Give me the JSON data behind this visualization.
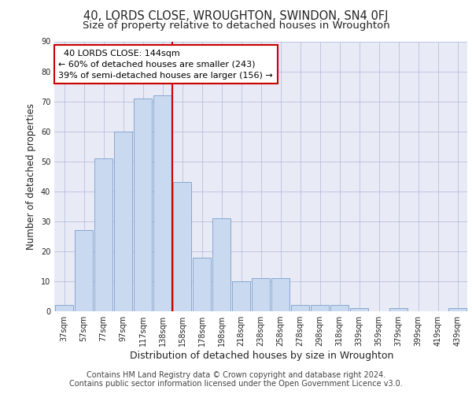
{
  "title": "40, LORDS CLOSE, WROUGHTON, SWINDON, SN4 0FJ",
  "subtitle": "Size of property relative to detached houses in Wroughton",
  "xlabel": "Distribution of detached houses by size in Wroughton",
  "ylabel": "Number of detached properties",
  "categories": [
    "37sqm",
    "57sqm",
    "77sqm",
    "97sqm",
    "117sqm",
    "138sqm",
    "158sqm",
    "178sqm",
    "198sqm",
    "218sqm",
    "238sqm",
    "258sqm",
    "278sqm",
    "298sqm",
    "318sqm",
    "339sqm",
    "359sqm",
    "379sqm",
    "399sqm",
    "419sqm",
    "439sqm"
  ],
  "values": [
    2,
    27,
    51,
    60,
    71,
    72,
    43,
    18,
    31,
    10,
    11,
    11,
    2,
    2,
    2,
    1,
    0,
    1,
    0,
    0,
    1
  ],
  "bar_color": "#c9d9f0",
  "bar_edge_color": "#7a9fcb",
  "vline_x": 5.5,
  "vline_color": "#cc0000",
  "annotation_text": "  40 LORDS CLOSE: 144sqm  \n← 60% of detached houses are smaller (243)\n39% of semi-detached houses are larger (156) →",
  "annotation_box_color": "#ffffff",
  "annotation_box_edge": "#cc0000",
  "grid_color": "#b0b8d8",
  "plot_bg_color": "#e8eaf6",
  "ylim": [
    0,
    90
  ],
  "yticks": [
    0,
    10,
    20,
    30,
    40,
    50,
    60,
    70,
    80,
    90
  ],
  "footer_line1": "Contains HM Land Registry data © Crown copyright and database right 2024.",
  "footer_line2": "Contains public sector information licensed under the Open Government Licence v3.0.",
  "title_fontsize": 10.5,
  "subtitle_fontsize": 9.5,
  "tick_fontsize": 7,
  "ylabel_fontsize": 8.5,
  "xlabel_fontsize": 9,
  "footer_fontsize": 7,
  "annotation_fontsize": 8
}
